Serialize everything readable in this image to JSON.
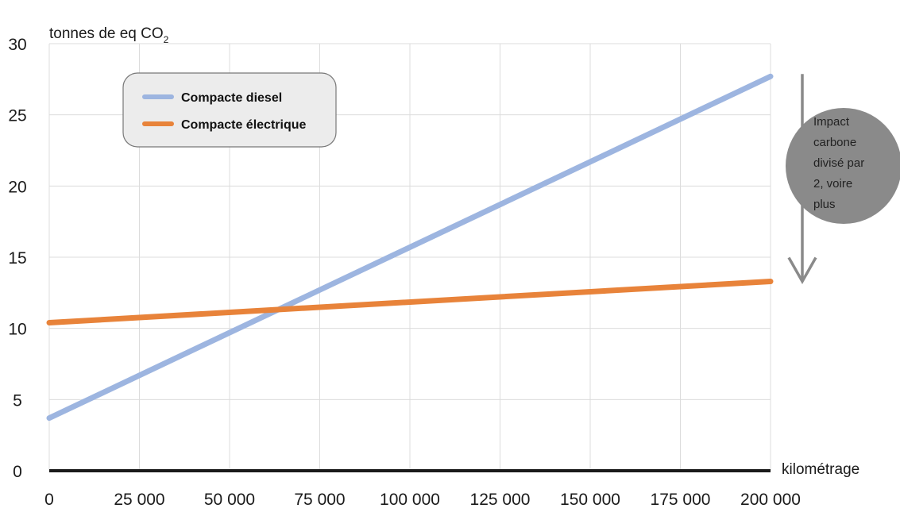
{
  "chart_data": {
    "type": "line",
    "ylabel": "tonnes de eq CO",
    "ylabel_sub": "2",
    "xlabel": "kilométrage",
    "xlim": [
      0,
      200000
    ],
    "ylim": [
      0,
      30
    ],
    "x_ticks": [
      0,
      25000,
      50000,
      75000,
      100000,
      125000,
      150000,
      175000,
      200000
    ],
    "x_tick_labels": [
      "0",
      "25 000",
      "50 000",
      "75 000",
      "100 000",
      "125 000",
      "150 000",
      "175 000",
      "200 000"
    ],
    "y_ticks": [
      0,
      5,
      10,
      15,
      20,
      25,
      30
    ],
    "y_tick_labels": [
      "0",
      "5",
      "10",
      "15",
      "20",
      "25",
      "30"
    ],
    "grid": true,
    "legend_position": "top-left",
    "series": [
      {
        "name": "Compacte diesel",
        "color": "#9db5e0",
        "x": [
          0,
          200000
        ],
        "y": [
          3.7,
          27.7
        ]
      },
      {
        "name": "Compacte électrique",
        "color": "#e8833a",
        "x": [
          0,
          200000
        ],
        "y": [
          10.4,
          13.3
        ]
      }
    ],
    "annotation": {
      "lines": [
        "Impact",
        "carbone",
        "divisé par",
        "2, voire",
        "plus"
      ],
      "arrow_from": 27.7,
      "arrow_to": 13.3
    }
  }
}
